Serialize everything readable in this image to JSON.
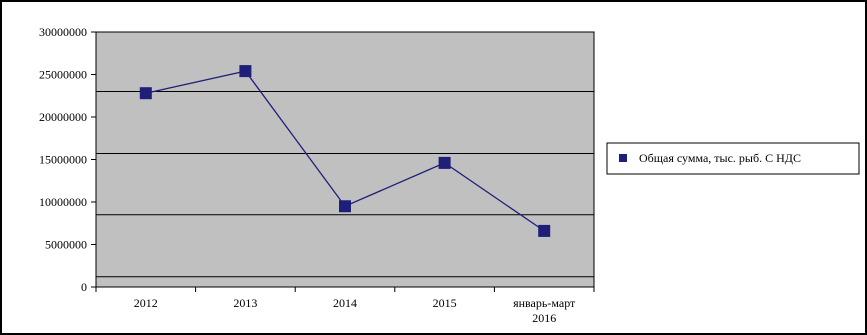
{
  "chart_data": {
    "type": "line",
    "categories": [
      "2012",
      "2013",
      "2014",
      "2015",
      "январь-март|2016"
    ],
    "series": [
      {
        "name": "Общая сумма, тыс. рыб. С НДС",
        "values": [
          22800000,
          25400000,
          9500000,
          14600000,
          6600000
        ],
        "color": "#1f1f7a"
      }
    ],
    "y_ticks": [
      "30000000",
      "25000000",
      "20000000",
      "15000000",
      "10000000",
      "5000000",
      "0"
    ],
    "ylim": [
      0,
      30000000
    ],
    "plot_background": "#c0c0c0",
    "grid": "horizontal",
    "legend_position": "right"
  }
}
